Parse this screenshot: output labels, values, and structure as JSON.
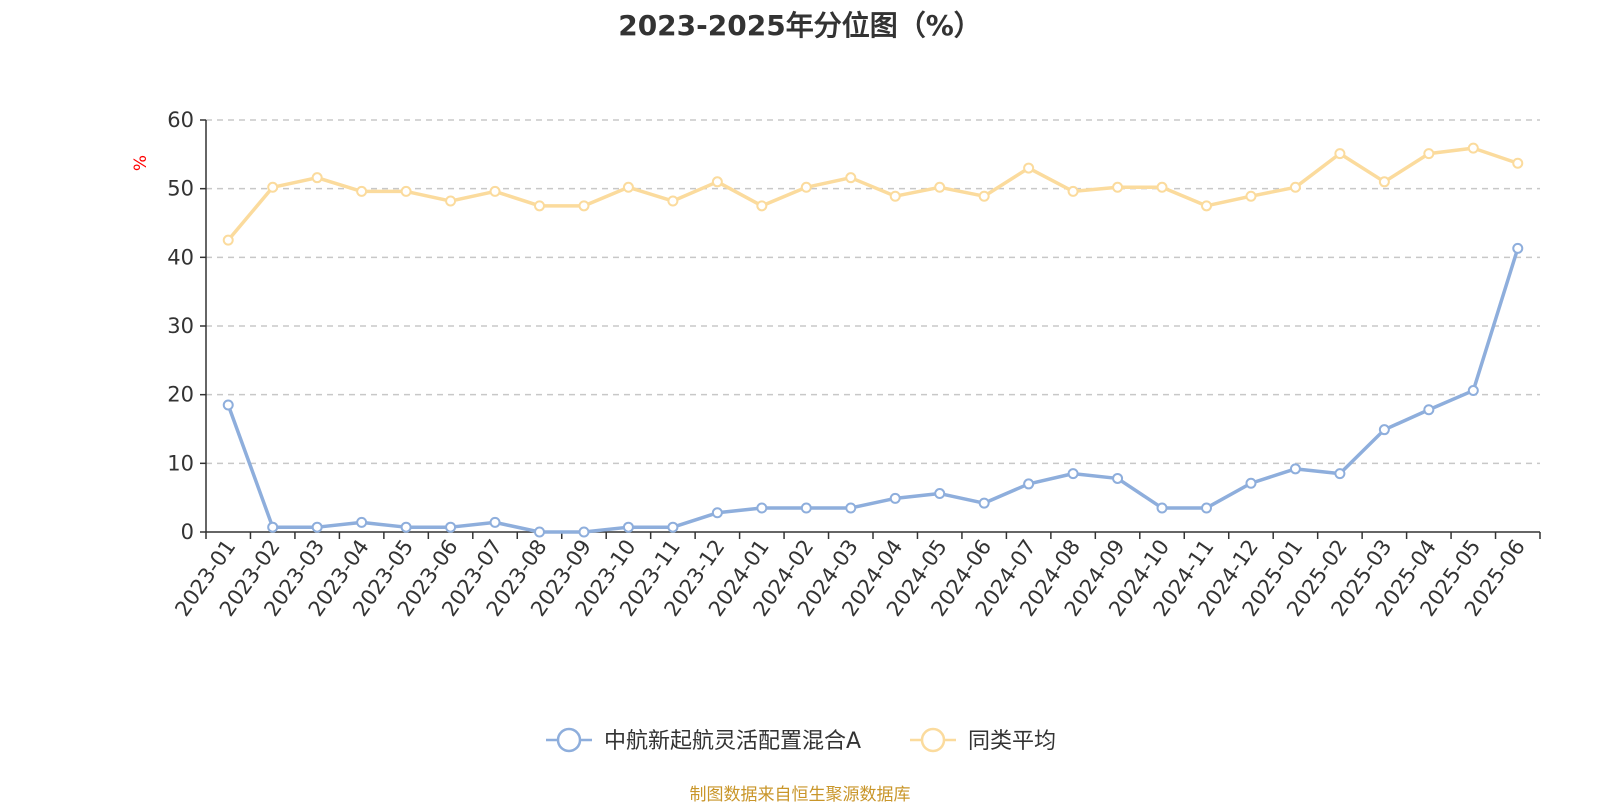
{
  "chart_data": {
    "type": "line",
    "title": "2023-2025年分位图（%）",
    "ylabel": "%",
    "xlabel": "",
    "ylim": [
      0,
      60
    ],
    "yticks": [
      0,
      10,
      20,
      30,
      40,
      50,
      60
    ],
    "grid": true,
    "legend_position": "bottom",
    "categories": [
      "2023-01",
      "2023-02",
      "2023-03",
      "2023-04",
      "2023-05",
      "2023-06",
      "2023-07",
      "2023-08",
      "2023-09",
      "2023-10",
      "2023-11",
      "2023-12",
      "2024-01",
      "2024-02",
      "2024-03",
      "2024-04",
      "2024-05",
      "2024-06",
      "2024-07",
      "2024-08",
      "2024-09",
      "2024-10",
      "2024-11",
      "2024-12",
      "2025-01",
      "2025-02",
      "2025-03",
      "2025-04",
      "2025-05",
      "2025-06"
    ],
    "series": [
      {
        "name": "中航新起航灵活配置混合A",
        "color": "#8eaedc",
        "values": [
          18.5,
          0.7,
          0.7,
          1.4,
          0.7,
          0.7,
          1.4,
          0.0,
          0.0,
          0.7,
          0.7,
          2.8,
          3.5,
          3.5,
          3.5,
          4.9,
          5.6,
          4.2,
          7.0,
          8.5,
          7.8,
          3.5,
          3.5,
          7.1,
          9.2,
          8.5,
          14.9,
          17.8,
          20.6,
          41.3
        ]
      },
      {
        "name": "同类平均",
        "color": "#fbdb9d",
        "values": [
          42.5,
          50.2,
          51.6,
          49.6,
          49.6,
          48.2,
          49.6,
          47.5,
          47.5,
          50.2,
          48.2,
          51.0,
          47.5,
          50.2,
          51.6,
          48.9,
          50.2,
          48.9,
          53.0,
          49.6,
          50.2,
          50.2,
          47.5,
          48.9,
          50.2,
          55.1,
          51.0,
          55.1,
          55.9,
          53.7
        ]
      }
    ]
  },
  "footer": {
    "source": "制图数据来自恒生聚源数据库"
  }
}
